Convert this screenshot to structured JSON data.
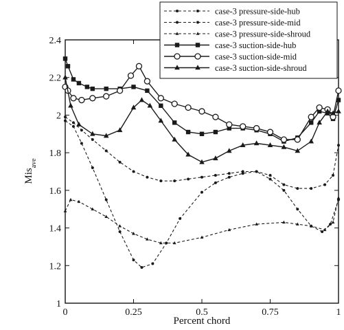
{
  "chart_data": {
    "type": "line",
    "xlabel": "Percent chord",
    "ylabel": "Mis",
    "ylabel_sub": "ave",
    "xlim": [
      0,
      1
    ],
    "ylim": [
      1,
      2.4
    ],
    "xticks": [
      0,
      0.25,
      0.5,
      0.75,
      1
    ],
    "xtick_labels": [
      "0",
      "0.25",
      "0.5",
      "0.75",
      "1"
    ],
    "yticks": [
      1,
      1.2,
      1.4,
      1.6,
      1.8,
      2,
      2.2,
      2.4
    ],
    "ytick_labels": [
      "1",
      "1.2",
      "1.4",
      "1.6",
      "1.8",
      "2",
      "2.2",
      "2.4"
    ],
    "grid": false,
    "legend_position": "top-right",
    "series": [
      {
        "name": "case-3 pressure-side-hub",
        "line": "dashed",
        "marker": "dot",
        "x": [
          0,
          0.03,
          0.06,
          0.1,
          0.15,
          0.2,
          0.25,
          0.3,
          0.35,
          0.4,
          0.45,
          0.5,
          0.55,
          0.6,
          0.65,
          0.7,
          0.75,
          0.8,
          0.85,
          0.9,
          0.95,
          0.98,
          1
        ],
        "y": [
          1.99,
          1.96,
          1.92,
          1.87,
          1.81,
          1.75,
          1.7,
          1.67,
          1.65,
          1.65,
          1.66,
          1.67,
          1.68,
          1.69,
          1.7,
          1.7,
          1.68,
          1.63,
          1.61,
          1.61,
          1.63,
          1.68,
          1.84
        ]
      },
      {
        "name": "case-3 pressure-side-mid",
        "line": "dashed",
        "marker": "dot",
        "x": [
          0,
          0.03,
          0.06,
          0.1,
          0.15,
          0.2,
          0.25,
          0.28,
          0.32,
          0.37,
          0.42,
          0.5,
          0.55,
          0.6,
          0.65,
          0.7,
          0.75,
          0.8,
          0.85,
          0.9,
          0.94,
          0.97,
          1
        ],
        "y": [
          1.97,
          1.94,
          1.85,
          1.72,
          1.55,
          1.38,
          1.23,
          1.19,
          1.21,
          1.32,
          1.45,
          1.59,
          1.64,
          1.67,
          1.69,
          1.7,
          1.66,
          1.6,
          1.5,
          1.41,
          1.38,
          1.42,
          1.55
        ]
      },
      {
        "name": "case-3 pressure-side-shroud",
        "line": "dashed",
        "marker": "triangle",
        "x": [
          0,
          0.02,
          0.05,
          0.1,
          0.15,
          0.2,
          0.25,
          0.3,
          0.35,
          0.4,
          0.5,
          0.6,
          0.7,
          0.8,
          0.85,
          0.9,
          0.95,
          0.98,
          1
        ],
        "y": [
          1.49,
          1.55,
          1.54,
          1.5,
          1.46,
          1.41,
          1.37,
          1.34,
          1.32,
          1.32,
          1.35,
          1.39,
          1.42,
          1.43,
          1.42,
          1.41,
          1.39,
          1.43,
          1.56
        ]
      },
      {
        "name": "case-3 suction-side-hub",
        "line": "solid",
        "marker": "filled-square",
        "x": [
          0,
          0.01,
          0.03,
          0.05,
          0.08,
          0.1,
          0.15,
          0.2,
          0.25,
          0.3,
          0.35,
          0.4,
          0.45,
          0.5,
          0.55,
          0.6,
          0.65,
          0.7,
          0.75,
          0.8,
          0.85,
          0.9,
          0.93,
          0.96,
          0.98,
          1
        ],
        "y": [
          2.3,
          2.26,
          2.19,
          2.17,
          2.15,
          2.14,
          2.14,
          2.14,
          2.15,
          2.13,
          2.05,
          1.96,
          1.91,
          1.9,
          1.91,
          1.93,
          1.93,
          1.92,
          1.9,
          1.86,
          1.88,
          1.96,
          2.02,
          2.01,
          1.98,
          2.08
        ]
      },
      {
        "name": "case-3 suction-side-mid",
        "line": "solid",
        "marker": "open-circle",
        "x": [
          0,
          0.01,
          0.03,
          0.06,
          0.1,
          0.15,
          0.2,
          0.24,
          0.27,
          0.3,
          0.35,
          0.4,
          0.45,
          0.5,
          0.55,
          0.6,
          0.65,
          0.7,
          0.75,
          0.8,
          0.85,
          0.9,
          0.93,
          0.96,
          0.98,
          1
        ],
        "y": [
          2.15,
          2.13,
          2.09,
          2.08,
          2.09,
          2.1,
          2.13,
          2.21,
          2.26,
          2.18,
          2.09,
          2.06,
          2.04,
          2.02,
          1.99,
          1.95,
          1.94,
          1.93,
          1.91,
          1.87,
          1.87,
          1.99,
          2.04,
          2.03,
          1.99,
          2.13
        ]
      },
      {
        "name": "case-3 suction-side-shroud",
        "line": "solid",
        "marker": "filled-triangle",
        "x": [
          0,
          0.02,
          0.05,
          0.1,
          0.15,
          0.2,
          0.25,
          0.28,
          0.31,
          0.35,
          0.4,
          0.45,
          0.5,
          0.55,
          0.6,
          0.65,
          0.7,
          0.75,
          0.8,
          0.85,
          0.9,
          0.93,
          0.96,
          0.98,
          1
        ],
        "y": [
          2.2,
          2.05,
          1.95,
          1.9,
          1.89,
          1.92,
          2.04,
          2.08,
          2.05,
          1.97,
          1.87,
          1.79,
          1.75,
          1.77,
          1.81,
          1.84,
          1.85,
          1.84,
          1.83,
          1.81,
          1.86,
          1.96,
          2.02,
          2.01,
          2.02
        ]
      }
    ]
  }
}
